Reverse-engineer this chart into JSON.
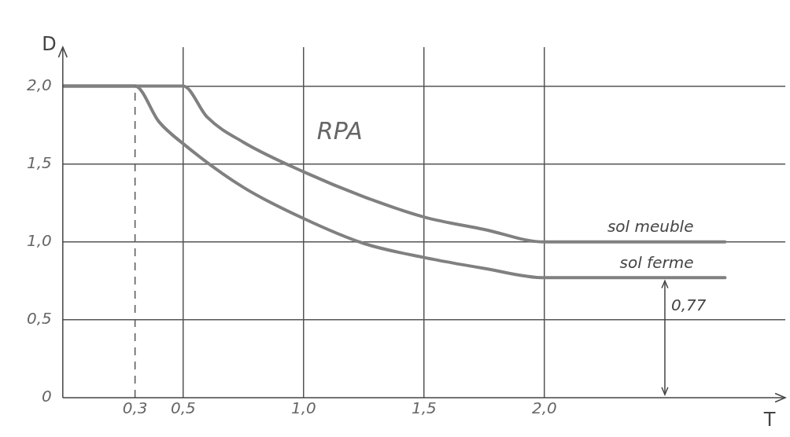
{
  "chart_data": {
    "type": "line",
    "title": "RPA",
    "xlabel": "T",
    "ylabel": "D",
    "xlim": [
      0,
      3.0
    ],
    "ylim": [
      0,
      2.25
    ],
    "xticks": [
      {
        "value": 0,
        "label": null
      },
      {
        "value": 0.3,
        "label": "0,3"
      },
      {
        "value": 0.5,
        "label": "0,5"
      },
      {
        "value": 1,
        "label": "1,0"
      },
      {
        "value": 1.5,
        "label": "1,5"
      },
      {
        "value": 2,
        "label": "2,0"
      }
    ],
    "yticks": [
      {
        "value": 0,
        "label": "0"
      },
      {
        "value": 0.5,
        "label": "0,5"
      },
      {
        "value": 1,
        "label": "1,0"
      },
      {
        "value": 1.5,
        "label": "1,5"
      },
      {
        "value": 2,
        "label": "2,0"
      }
    ],
    "grid": true,
    "legend": false,
    "marker": "none",
    "series": [
      {
        "name": "sol meuble",
        "color": "#808080",
        "x": [
          0,
          0.5,
          0.6,
          0.75,
          1.0,
          1.25,
          1.5,
          1.75,
          2.0,
          2.75
        ],
        "values": [
          2.0,
          2.0,
          1.8,
          1.64,
          1.45,
          1.29,
          1.16,
          1.08,
          1.0,
          1.0
        ]
      },
      {
        "name": "sol ferme",
        "color": "#808080",
        "x": [
          0,
          0.3,
          0.4,
          0.5,
          0.75,
          1.0,
          1.25,
          1.5,
          1.75,
          2.0,
          2.75
        ],
        "values": [
          2.0,
          2.0,
          1.77,
          1.63,
          1.35,
          1.15,
          0.99,
          0.9,
          0.83,
          0.77,
          0.77
        ]
      }
    ],
    "ref_lines": [
      {
        "axis": "x",
        "value": 0.3,
        "line_style": "dashed",
        "color": "#555555"
      }
    ],
    "annotations": [
      {
        "text": "0,77",
        "x": 2.5,
        "y": 0.77
      }
    ]
  }
}
